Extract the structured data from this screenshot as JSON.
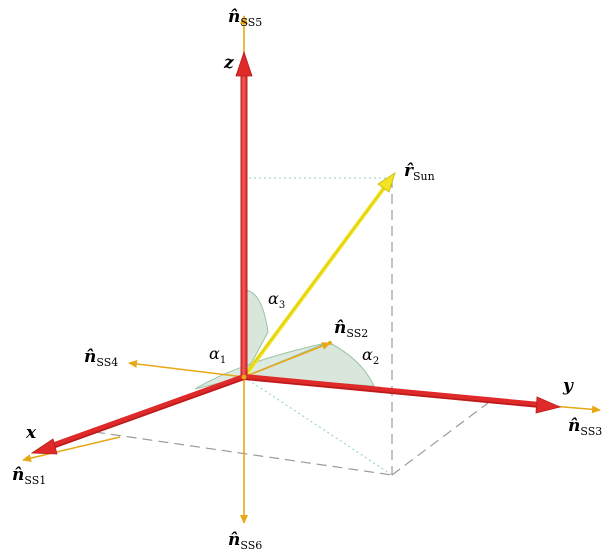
{
  "colors": {
    "axis": "#e02a2a",
    "axis_dark": "#b71c1c",
    "normal": "#e6a817",
    "sun": "#f2e324",
    "sun_dark": "#c9b800",
    "wedge": "#8fb89a",
    "wedge_edge": "#9cc3a4",
    "dash": "#9b9b9b",
    "dot": "#8fcfc4"
  },
  "axes": {
    "x": "x",
    "y": "y",
    "z": "z"
  },
  "normals": {
    "ss1": {
      "vec": "n̂",
      "sub": "SS1"
    },
    "ss2": {
      "vec": "n̂",
      "sub": "SS2"
    },
    "ss3": {
      "vec": "n̂",
      "sub": "SS3"
    },
    "ss4": {
      "vec": "n̂",
      "sub": "SS4"
    },
    "ss5": {
      "vec": "n̂",
      "sub": "SS5"
    },
    "ss6": {
      "vec": "n̂",
      "sub": "SS6"
    }
  },
  "sun": {
    "vec": "r̂",
    "sub": "Sun"
  },
  "angles": {
    "a1": {
      "sym": "α",
      "sub": "1"
    },
    "a2": {
      "sym": "α",
      "sub": "2"
    },
    "a3": {
      "sym": "α",
      "sub": "3"
    }
  }
}
